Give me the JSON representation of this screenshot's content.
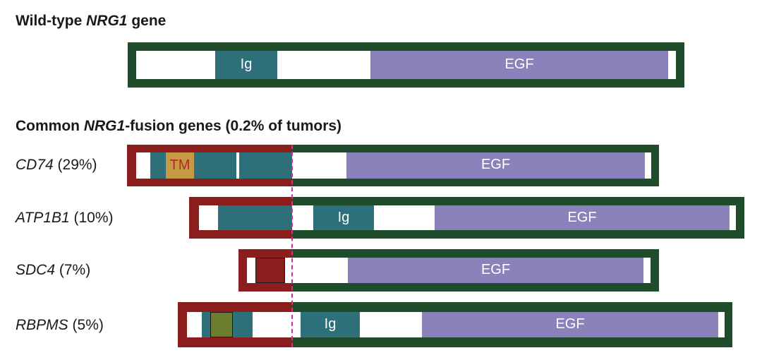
{
  "wild_type": {
    "heading_pre": "Wild-type ",
    "heading_gene": "NRG1",
    "heading_post": " gene",
    "ig_label": "Ig",
    "egf_label": "EGF"
  },
  "fusions": {
    "heading_pre": "Common ",
    "heading_gene": "NRG1",
    "heading_post": "-fusion genes (0.2% of tumors)",
    "rows": [
      {
        "gene": "CD74",
        "pct": " (29%)",
        "domain_label": "TM",
        "egf_label": "EGF"
      },
      {
        "gene": "ATP1B1",
        "pct": " (10%)",
        "ig_label": "Ig",
        "egf_label": "EGF"
      },
      {
        "gene": "SDC4",
        "pct": " (7%)",
        "egf_label": "EGF"
      },
      {
        "gene": "RBPMS",
        "pct": " (5%)",
        "ig_label": "Ig",
        "egf_label": "EGF"
      }
    ]
  },
  "colors": {
    "nrg1_frame": "#1f4d2b",
    "partner_frame": "#8b1d1d",
    "ig_domain": "#2e7079",
    "egf_domain": "#8d81bb",
    "tm_domain": "#c69a45",
    "sdc4_domain": "#8b1d1d",
    "rbpms_domain": "#6b7d2e",
    "junction_line": "#d0308f"
  }
}
